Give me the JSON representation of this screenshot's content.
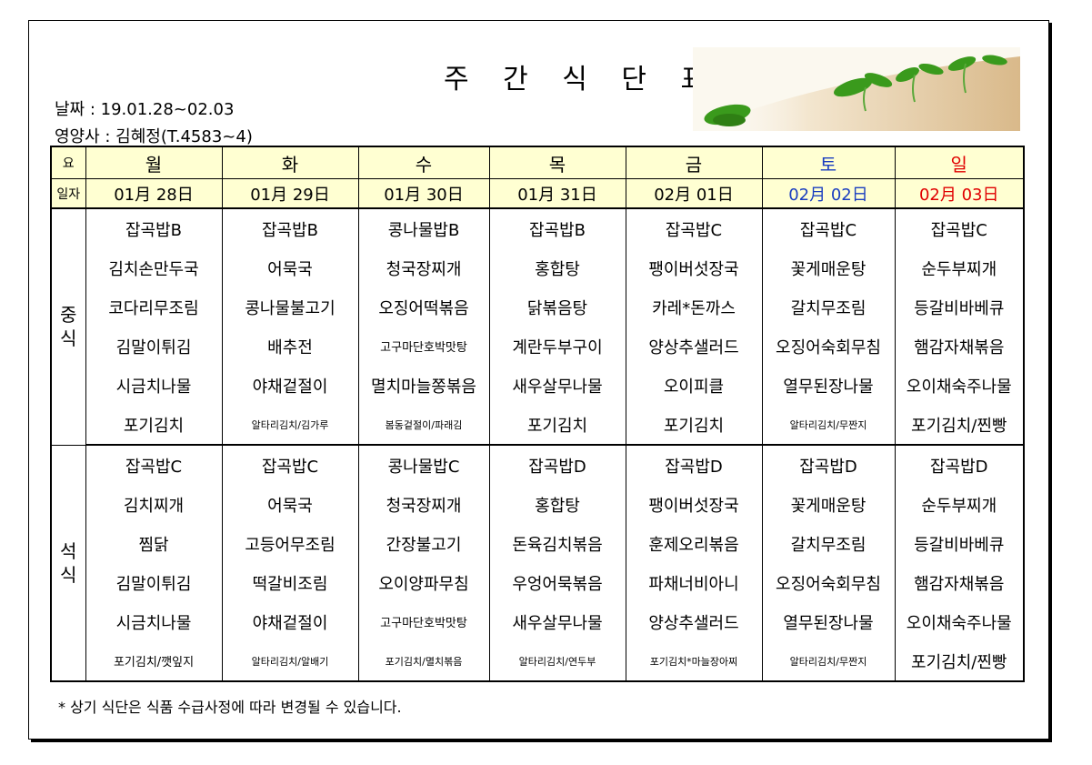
{
  "title": "주 간 식 단 표",
  "date_line": "날짜 : 19.01.28~02.03",
  "dietitian_line": "영양사 : 김혜정(T.4583~4)",
  "header": {
    "day_label": "요",
    "date_label": "일자",
    "days": [
      "월",
      "화",
      "수",
      "목",
      "금",
      "토",
      "일"
    ],
    "dates": [
      "01月 28日",
      "01月 29日",
      "01月 30日",
      "01月 31日",
      "02月 01日",
      "02月 02日",
      "02月 03日"
    ]
  },
  "meals": [
    {
      "name": "중\n식",
      "rows": [
        [
          "잡곡밥B",
          "잡곡밥B",
          "콩나물밥B",
          "잡곡밥B",
          "잡곡밥C",
          "잡곡밥C",
          "잡곡밥C"
        ],
        [
          "김치손만두국",
          "어묵국",
          "청국장찌개",
          "홍합탕",
          "팽이버섯장국",
          "꽃게매운탕",
          "순두부찌개"
        ],
        [
          "코다리무조림",
          "콩나물불고기",
          "오징어떡볶음",
          "닭볶음탕",
          "카레*돈까스",
          "갈치무조림",
          "등갈비바베큐"
        ],
        [
          "김말이튀김",
          "배추전",
          "고구마단호박맛탕",
          "계란두부구이",
          "양상추샐러드",
          "오징어숙회무침",
          "햄감자채볶음"
        ],
        [
          "시금치나물",
          "야채겉절이",
          "멸치마늘쫑볶음",
          "새우살무나물",
          "오이피클",
          "열무된장나물",
          "오이채숙주나물"
        ],
        [
          "포기김치",
          "알타리김치/김가루",
          "봄동겉절이/파래김",
          "포기김치",
          "포기김치",
          "알타리김치/무짠지",
          "포기김치/찐빵"
        ]
      ]
    },
    {
      "name": "석\n식",
      "rows": [
        [
          "잡곡밥C",
          "잡곡밥C",
          "콩나물밥C",
          "잡곡밥D",
          "잡곡밥D",
          "잡곡밥D",
          "잡곡밥D"
        ],
        [
          "김치찌개",
          "어묵국",
          "청국장찌개",
          "홍합탕",
          "팽이버섯장국",
          "꽃게매운탕",
          "순두부찌개"
        ],
        [
          "찜닭",
          "고등어무조림",
          "간장불고기",
          "돈육김치볶음",
          "훈제오리볶음",
          "갈치무조림",
          "등갈비바베큐"
        ],
        [
          "김말이튀김",
          "떡갈비조림",
          "오이양파무침",
          "우엉어묵볶음",
          "파채너비아니",
          "오징어숙회무침",
          "햄감자채볶음"
        ],
        [
          "시금치나물",
          "야채겉절이",
          "고구마단호박맛탕",
          "새우살무나물",
          "양상추샐러드",
          "열무된장나물",
          "오이채숙주나물"
        ],
        [
          "포기김치/깻잎지",
          "알타리김치/알배기",
          "포기김치/멸치볶음",
          "알타리김치/연두부",
          "포기김치*마늘장아찌",
          "알타리김치/무짠지",
          "포기김치/찐빵"
        ]
      ]
    }
  ],
  "footnote": "* 상기 식단은 식품 수급사정에 따라 변경될 수 있습니다.",
  "colors": {
    "header_bg": "#ffffd2",
    "saturday": "#1a3ec0",
    "sunday": "#e00000"
  }
}
